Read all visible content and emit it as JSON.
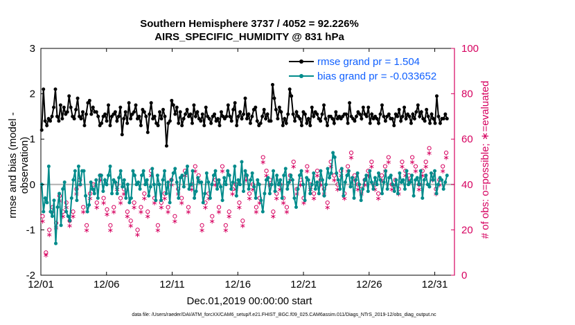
{
  "chart_data": {
    "type": "line",
    "title": "Southern Hemisphere 3737 / 4052 = 92.226%",
    "subtitle": "AIRS_SPECIFIC_HUMIDITY @ 831 hPa",
    "xlabel": "Dec.01,2019 00:00:00 start",
    "ylabel": "rmse and bias (model - observation)",
    "y2label": "# of obs: o=possible; ∗=evaluated",
    "footnote": "data file: /Users/raeder/DAI/ATM_forcXX/CAM6_setup/f.e21.FHIST_BGC.f09_025.CAM6assim.011/Diags_NTrS_2019-12/obs_diag_output.nc",
    "xlim": [
      0,
      31.5
    ],
    "ylim": [
      -2,
      3
    ],
    "y2lim": [
      0,
      100
    ],
    "xticks": [
      0,
      5,
      10,
      15,
      20,
      25,
      30
    ],
    "xticklabels": [
      "12/01",
      "12/06",
      "12/11",
      "12/16",
      "12/21",
      "12/26",
      "12/31"
    ],
    "yticks": [
      -2,
      -1,
      0,
      1,
      2,
      3
    ],
    "yticklabels": [
      "-2",
      "-1",
      "0",
      "1",
      "2",
      "3"
    ],
    "y2ticks": [
      0,
      20,
      40,
      60,
      80,
      100
    ],
    "y2ticklabels": [
      "0",
      "20",
      "40",
      "60",
      "80",
      "100"
    ],
    "legend_position": "top-right",
    "colors": {
      "rmse": "#000000",
      "bias": "#008b8b",
      "obs": "#d6005f",
      "zero": "#b0b0b0",
      "legend_text": "#1060ff"
    },
    "series": [
      {
        "name": "rmse grand pr = 1.504",
        "axis": "left",
        "color": "#000000",
        "values": [
          1.2,
          2.1,
          1.4,
          1.3,
          1.45,
          1.4,
          1.5,
          1.7,
          2.1,
          1.5,
          1.4,
          1.75,
          1.45,
          1.7,
          1.55,
          1.6,
          1.95,
          1.7,
          1.5,
          1.45,
          1.65,
          1.9,
          1.5,
          1.45,
          1.6,
          1.3,
          1.55,
          1.8,
          1.85,
          1.55,
          1.7,
          1.6,
          1.6,
          1.5,
          1.3,
          1.35,
          1.5,
          1.55,
          1.4,
          1.75,
          1.3,
          1.5,
          1.55,
          1.6,
          1.4,
          1.5,
          1.7,
          1.1,
          1.45,
          1.6,
          1.35,
          1.8,
          1.45,
          1.55,
          1.6,
          1.75,
          1.45,
          1.5,
          1.3,
          1.65,
          1.6,
          1.5,
          1.15,
          1.55,
          1.8,
          1.45,
          1.5,
          1.35,
          1.3,
          1.6,
          1.45,
          1.65,
          1.5,
          0.85,
          1.35,
          1.4,
          1.85,
          1.75,
          1.55,
          1.7,
          1.35,
          1.6,
          1.3,
          1.45,
          1.55,
          1.65,
          1.5,
          1.55,
          1.35,
          1.75,
          1.5,
          1.6,
          1.45,
          1.4,
          1.55,
          1.3,
          1.7,
          1.5,
          1.45,
          1.35,
          1.5,
          1.55,
          1.4,
          1.45,
          1.3,
          1.6,
          1.5,
          1.45,
          1.5,
          1.75,
          1.5,
          1.4,
          1.65,
          1.8,
          1.3,
          1.5,
          1.6,
          1.45,
          1.55,
          1.9,
          1.45,
          1.55,
          1.35,
          1.5,
          1.65,
          1.7,
          1.4,
          1.3,
          1.35,
          1.5,
          1.65,
          1.45,
          1.55,
          1.4,
          1.4,
          2.2,
          1.9,
          1.65,
          1.45,
          1.7,
          1.6,
          1.3,
          1.45,
          1.35,
          1.55,
          2.1,
          1.95,
          1.55,
          1.4,
          1.6,
          1.5,
          1.45,
          1.3,
          1.6,
          1.55,
          1.35,
          1.45,
          1.3,
          1.7,
          1.5,
          1.6,
          1.55,
          1.45,
          1.4,
          1.55,
          1.75,
          1.45,
          1.3,
          1.5,
          1.5,
          1.45,
          1.35,
          1.6,
          1.45,
          1.5,
          1.45,
          1.5,
          1.55,
          1.55,
          1.35,
          1.8,
          1.5,
          1.45,
          1.4,
          1.5,
          1.6,
          1.55,
          1.45,
          1.7,
          1.55,
          1.5,
          1.7,
          1.35,
          1.55,
          1.45,
          1.5,
          1.45,
          1.35,
          1.55,
          1.75,
          1.5,
          1.4,
          1.5,
          1.55,
          1.45,
          1.45,
          1.3,
          1.55,
          1.5,
          1.65,
          1.4,
          1.5,
          1.7,
          1.45,
          1.55,
          1.5,
          1.35,
          1.55,
          1.45,
          1.6,
          1.75,
          1.5,
          1.6,
          1.45,
          1.4,
          1.65,
          1.5,
          1.35,
          1.55,
          1.45,
          1.35,
          1.95,
          1.5,
          1.35,
          1.45,
          1.45,
          1.55,
          1.45
        ]
      },
      {
        "name": "bias grand pr = -0.033652",
        "axis": "left",
        "color": "#008b8b",
        "values": [
          0.0,
          -0.6,
          -0.3,
          -0.4,
          0.4,
          -0.6,
          -0.7,
          -0.35,
          -1.3,
          -0.5,
          -0.2,
          -0.9,
          -0.1,
          0.05,
          -0.6,
          -0.7,
          -0.8,
          -0.3,
          0.1,
          0.3,
          -0.35,
          0.4,
          0.0,
          0.3,
          0.3,
          -0.25,
          -0.6,
          -0.45,
          0.05,
          -0.1,
          -0.2,
          0.1,
          -0.3,
          0.2,
          0.2,
          -0.15,
          0.1,
          0.0,
          0.2,
          0.4,
          -0.2,
          0.1,
          0.05,
          -0.2,
          0.15,
          0.3,
          -0.05,
          0.1,
          -0.3,
          0.0,
          -0.4,
          -0.3,
          0.3,
          0.2,
          0.0,
          0.05,
          -0.1,
          0.2,
          0.3,
          0.0,
          0.1,
          -0.25,
          -0.05,
          0.35,
          0.0,
          -0.35,
          0.2,
          0.0,
          -0.35,
          0.1,
          0.3,
          -0.2,
          0.05,
          -0.4,
          0.1,
          0.25,
          0.35,
          0.05,
          -0.3,
          0.15,
          0.2,
          -0.05,
          0.25,
          0.4,
          -0.1,
          0.0,
          0.3,
          -0.3,
          -0.15,
          0.15,
          0.05,
          0.05,
          -0.4,
          -0.2,
          0.25,
          0.05,
          -0.3,
          0.0,
          0.2,
          0.3,
          -0.1,
          0.1,
          -0.05,
          -0.35,
          0.15,
          0.0,
          0.3,
          0.2,
          -0.1,
          0.05,
          0.4,
          -0.25,
          0.1,
          0.0,
          0.5,
          -0.15,
          0.3,
          0.2,
          -0.1,
          0.1,
          0.25,
          -0.05,
          -0.3,
          0.1,
          0.0,
          -0.35,
          -0.6,
          -0.2,
          0.1,
          0.15,
          -0.2,
          0.0,
          0.3,
          -0.15,
          0.2,
          0.0,
          0.1,
          -0.3,
          0.2,
          0.35,
          -0.1,
          0.05,
          0.2,
          0.1,
          -0.3,
          -0.5,
          -0.1,
          0.2,
          0.3,
          0.0,
          -0.35,
          0.15,
          0.1,
          -0.2,
          0.0,
          0.25,
          -0.1,
          0.05,
          -0.2,
          0.3,
          0.1,
          -0.25,
          0.0,
          0.35,
          0.15,
          0.25,
          0.7,
          0.6,
          0.25,
          0.1,
          -0.1,
          0.35,
          -0.25,
          0.05,
          0.2,
          0.3,
          -0.05,
          0.15,
          -0.3,
          0.1,
          0.25,
          0.0,
          -0.35,
          -0.1,
          0.1,
          0.2,
          -0.15,
          0.3,
          0.05,
          -0.1,
          0.15,
          0.0,
          0.25,
          0.1,
          -0.2,
          0.05,
          0.3,
          -0.1,
          0.15,
          0.2,
          0.0,
          -0.15,
          0.1,
          -0.2,
          0.25,
          0.05,
          0.1,
          -0.1,
          0.3,
          0.0,
          0.05,
          0.2,
          -0.25,
          0.1,
          0.15,
          0.0,
          0.3,
          -0.3,
          0.1,
          0.2,
          0.0,
          -0.05,
          0.25,
          0.1,
          0.3,
          -0.2,
          0.0,
          0.15,
          0.1,
          -0.1,
          0.05,
          0.2
        ]
      },
      {
        "name": "obs possible",
        "axis": "right",
        "color": "#d6005f",
        "marker": "circle",
        "values": [
          26,
          10,
          20,
          30,
          23,
          35,
          28,
          32,
          24,
          28,
          38,
          42,
          30,
          22,
          36,
          40,
          32,
          44,
          34,
          29,
          22,
          30,
          40,
          34,
          38,
          28,
          24,
          32,
          20,
          30,
          36,
          28,
          46,
          34,
          22,
          32,
          36,
          30,
          42,
          26,
          38,
          34,
          46,
          30,
          40,
          48,
          44,
          22,
          32,
          36,
          26,
          42,
          30,
          48,
          22,
          28,
          38,
          40,
          32,
          24,
          44,
          36,
          40,
          30,
          34,
          52,
          46,
          42,
          28,
          36,
          40,
          34,
          30,
          44,
          50,
          38,
          42,
          34,
          48,
          40,
          36,
          46,
          42,
          38,
          32,
          50,
          44,
          40,
          46,
          36,
          48,
          54,
          44,
          40,
          38,
          42,
          46,
          50,
          40,
          36,
          44,
          48,
          52,
          40,
          42,
          38,
          50,
          46,
          44,
          52,
          48,
          40,
          46,
          50,
          56,
          44,
          38,
          42,
          48,
          54
        ]
      },
      {
        "name": "obs evaluated",
        "axis": "right",
        "color": "#d6005f",
        "marker": "star",
        "values": [
          24,
          9,
          18,
          28,
          21,
          33,
          26,
          30,
          22,
          26,
          36,
          40,
          28,
          20,
          34,
          38,
          30,
          42,
          32,
          27,
          20,
          28,
          38,
          32,
          36,
          26,
          22,
          30,
          18,
          28,
          34,
          26,
          44,
          32,
          20,
          30,
          34,
          28,
          40,
          24,
          36,
          32,
          44,
          28,
          38,
          46,
          42,
          20,
          30,
          34,
          24,
          40,
          28,
          46,
          20,
          26,
          36,
          38,
          30,
          22,
          42,
          34,
          38,
          28,
          32,
          50,
          44,
          40,
          26,
          34,
          38,
          32,
          28,
          42,
          48,
          36,
          40,
          32,
          46,
          38,
          34,
          44,
          40,
          36,
          30,
          48,
          42,
          38,
          44,
          34,
          46,
          52,
          42,
          38,
          36,
          40,
          44,
          48,
          38,
          34,
          42,
          46,
          50,
          38,
          40,
          36,
          48,
          44,
          42,
          50,
          46,
          38,
          44,
          48,
          54,
          42,
          36,
          40,
          46,
          52
        ]
      }
    ]
  }
}
